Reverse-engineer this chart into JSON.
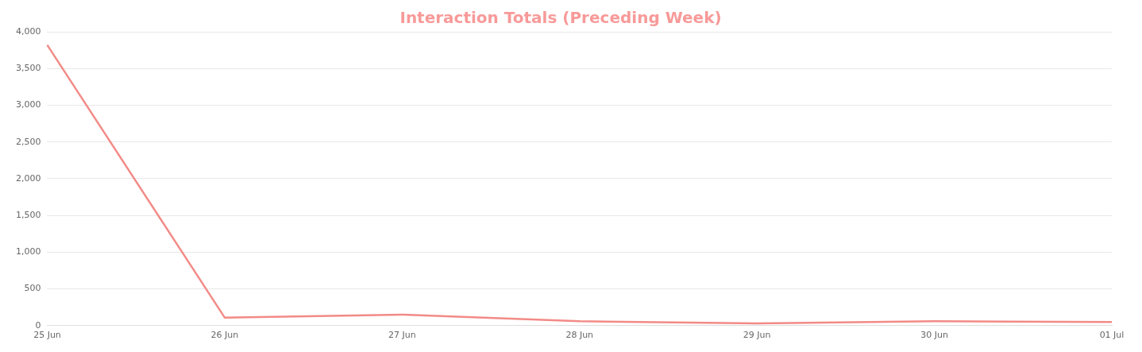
{
  "chart_data": {
    "type": "line",
    "title": "Interaction Totals (Preceding Week)",
    "categories": [
      "25 Jun",
      "26 Jun",
      "27 Jun",
      "28 Jun",
      "29 Jun",
      "30 Jun",
      "01 Jul"
    ],
    "series": [
      {
        "color": "#f28b87",
        "values": [
          3820,
          110,
          150,
          60,
          30,
          60,
          50
        ]
      }
    ],
    "ylim": [
      0,
      4000
    ],
    "yticks": [
      {
        "value": 0,
        "label": "0"
      },
      {
        "value": 500,
        "label": "500"
      },
      {
        "value": 1000,
        "label": "1,000"
      },
      {
        "value": 1500,
        "label": "1,500"
      },
      {
        "value": 2000,
        "label": "2,000"
      },
      {
        "value": 2500,
        "label": "2,500"
      },
      {
        "value": 3000,
        "label": "3,000"
      },
      {
        "value": 3500,
        "label": "3,500"
      },
      {
        "value": 4000,
        "label": "4,000"
      }
    ],
    "grid": "y",
    "legend": false,
    "marker": "none",
    "line_style": "solid"
  }
}
